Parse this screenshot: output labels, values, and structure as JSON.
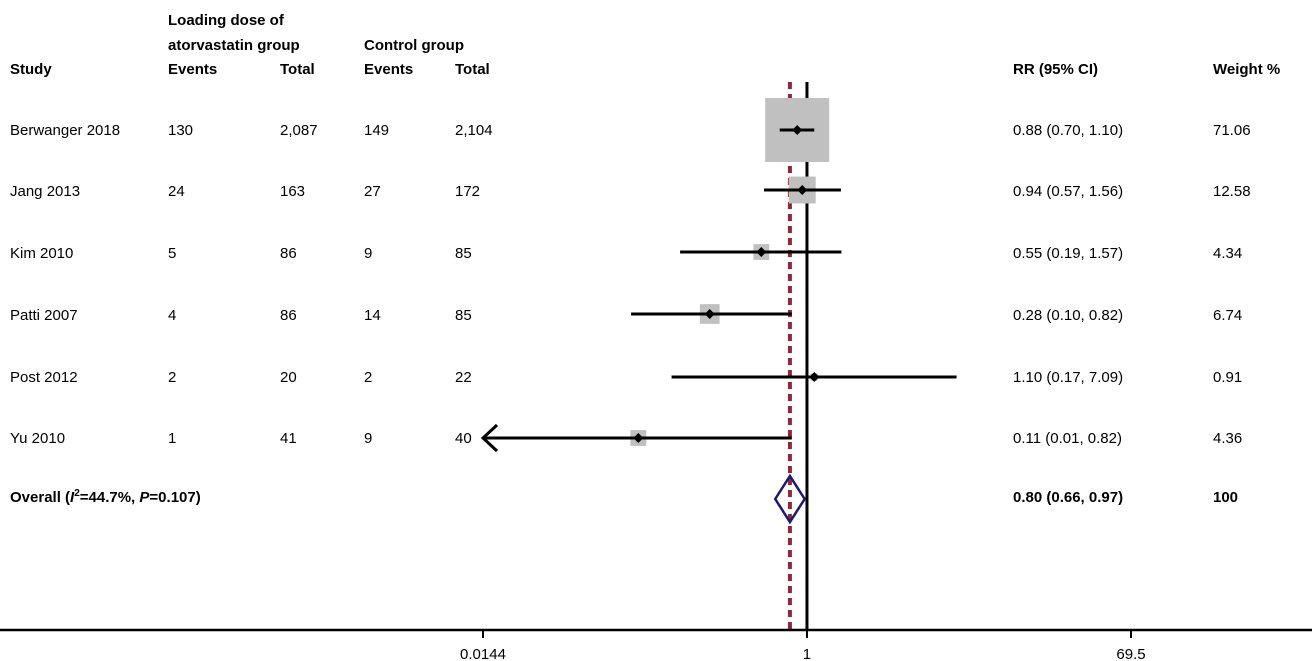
{
  "headers": {
    "study": "Study",
    "group1_line1": "Loading dose of",
    "group1_line2": "atorvastatin group",
    "group2": "Control group",
    "events1": "Events",
    "total1": "Total",
    "events2": "Events",
    "total2": "Total",
    "rr": "RR (95% CI)",
    "weight": "Weight %"
  },
  "overall": {
    "prefix": "Overall (",
    "i_letter": "I",
    "i_sup": "2",
    "i_value": "=44.7%, ",
    "p_letter": "P",
    "p_value": "=0.107)",
    "rr_text": "0.80 (0.66, 0.97)",
    "weight": "100"
  },
  "colors": {
    "weight_box": "#c0c0c0",
    "null_line": "#000000",
    "overall_line": "#8b2a3a",
    "diamond": "#1a1a6e",
    "point": "#000000"
  },
  "chart_data": {
    "type": "forest",
    "scale": "log",
    "xlim": [
      0.0144,
      69.5
    ],
    "x_ticks": [
      0.0144,
      1,
      69.5
    ],
    "x_tick_labels": [
      "0.0144",
      "1",
      "69.5"
    ],
    "null_value": 1,
    "overall_rr": 0.8,
    "overall_ci": [
      0.66,
      0.97
    ],
    "studies": [
      {
        "study": "Berwanger 2018",
        "events1": "130",
        "total1": "2,087",
        "events2": "149",
        "total2": "2,104",
        "rr": 0.88,
        "lo": 0.7,
        "hi": 1.1,
        "rr_text": "0.88 (0.70, 1.10)",
        "weight": "71.06",
        "weight_value": 71.06,
        "arrow_left": false
      },
      {
        "study": "Jang 2013",
        "events1": "24",
        "total1": "163",
        "events2": "27",
        "total2": "172",
        "rr": 0.94,
        "lo": 0.57,
        "hi": 1.56,
        "rr_text": "0.94 (0.57, 1.56)",
        "weight": "12.58",
        "weight_value": 12.58,
        "arrow_left": false
      },
      {
        "study": "Kim 2010",
        "events1": "5",
        "total1": "86",
        "events2": "9",
        "total2": "85",
        "rr": 0.55,
        "lo": 0.19,
        "hi": 1.57,
        "rr_text": "0.55 (0.19, 1.57)",
        "weight": "4.34",
        "weight_value": 4.34,
        "arrow_left": false
      },
      {
        "study": "Patti 2007",
        "events1": "4",
        "total1": "86",
        "events2": "14",
        "total2": "85",
        "rr": 0.28,
        "lo": 0.1,
        "hi": 0.82,
        "rr_text": "0.28 (0.10, 0.82)",
        "weight": "6.74",
        "weight_value": 6.74,
        "arrow_left": false
      },
      {
        "study": "Post 2012",
        "events1": "2",
        "total1": "20",
        "events2": "2",
        "total2": "22",
        "rr": 1.1,
        "lo": 0.17,
        "hi": 7.09,
        "rr_text": "1.10 (0.17, 7.09)",
        "weight": "0.91",
        "weight_value": 0.91,
        "arrow_left": false
      },
      {
        "study": "Yu 2010",
        "events1": "1",
        "total1": "41",
        "events2": "9",
        "total2": "40",
        "rr": 0.11,
        "lo": 0.01,
        "hi": 0.82,
        "rr_text": "0.11 (0.01, 0.82)",
        "weight": "4.36",
        "weight_value": 4.36,
        "arrow_left": true
      }
    ]
  }
}
